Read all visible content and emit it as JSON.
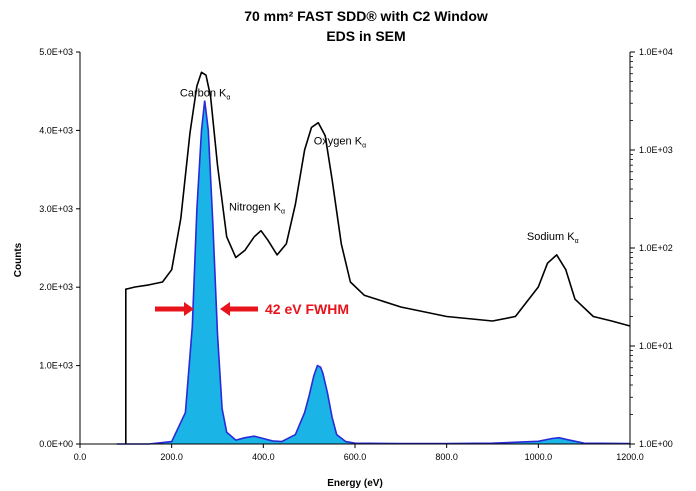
{
  "chart_data": {
    "type": "line",
    "title_lines": [
      "70 mm² FAST SDD® with C2 Window",
      "EDS in SEM"
    ],
    "xlabel": "Energy (eV)",
    "ylabel": "Counts",
    "xlim": [
      0,
      1200
    ],
    "ylim": [
      0,
      5000
    ],
    "y2lim": [
      1,
      10000
    ],
    "y2_scale": "log",
    "x_ticks": [
      "0.0",
      "200.0",
      "400.0",
      "600.0",
      "800.0",
      "1000.0",
      "1200.0"
    ],
    "y_ticks": [
      "0.0E+00",
      "1.0E+03",
      "2.0E+03",
      "3.0E+03",
      "4.0E+03",
      "5.0E+03"
    ],
    "y2_ticks": [
      "1.0E+00",
      "1.0E+01",
      "1.0E+02",
      "1.0E+03",
      "1.0E+04"
    ],
    "grid": false,
    "series": [
      {
        "axis": "left",
        "fill": true,
        "color": "#1ab4e6",
        "edge_color": "#2a2ad8",
        "x": [
          80,
          100,
          150,
          200,
          230,
          245,
          255,
          265,
          272,
          280,
          290,
          300,
          310,
          320,
          340,
          360,
          380,
          400,
          420,
          440,
          470,
          490,
          500,
          510,
          518,
          525,
          530,
          540,
          550,
          560,
          580,
          600,
          700,
          800,
          900,
          1000,
          1030,
          1045,
          1060,
          1100,
          1200
        ],
        "y": [
          0,
          0,
          0,
          30,
          400,
          1500,
          3000,
          4000,
          4380,
          4000,
          2800,
          1400,
          450,
          150,
          50,
          80,
          100,
          70,
          40,
          30,
          120,
          400,
          620,
          870,
          1000,
          980,
          900,
          650,
          340,
          120,
          30,
          10,
          5,
          5,
          10,
          35,
          70,
          80,
          60,
          10,
          5
        ]
      },
      {
        "axis": "right-log",
        "fill": false,
        "color": "#000000",
        "x": [
          100,
          120,
          150,
          180,
          200,
          220,
          240,
          255,
          265,
          275,
          285,
          300,
          320,
          340,
          360,
          380,
          395,
          410,
          430,
          450,
          470,
          490,
          505,
          520,
          535,
          550,
          570,
          590,
          620,
          700,
          800,
          900,
          950,
          1000,
          1020,
          1040,
          1060,
          1080,
          1120,
          1160,
          1200
        ],
        "y": [
          38,
          40,
          42,
          45,
          60,
          200,
          1500,
          4500,
          6200,
          5800,
          3500,
          700,
          130,
          80,
          95,
          130,
          150,
          120,
          85,
          110,
          280,
          1000,
          1700,
          1900,
          1400,
          500,
          110,
          45,
          33,
          25,
          20,
          18,
          20,
          40,
          70,
          85,
          60,
          30,
          20,
          18,
          16
        ]
      }
    ],
    "annotations": [
      {
        "text": "Carbon K",
        "sub": "α",
        "x": 218,
        "y": 4430
      },
      {
        "text": "Oxygen K",
        "sub": "α",
        "x": 510,
        "y": 3820
      },
      {
        "text": "Nitrogen K",
        "sub": "α",
        "x": 325,
        "y": 2980
      },
      {
        "text": "Sodium K",
        "sub": "α",
        "x": 975,
        "y": 2600
      }
    ],
    "fwhm_label": "42 eV FWHM"
  }
}
